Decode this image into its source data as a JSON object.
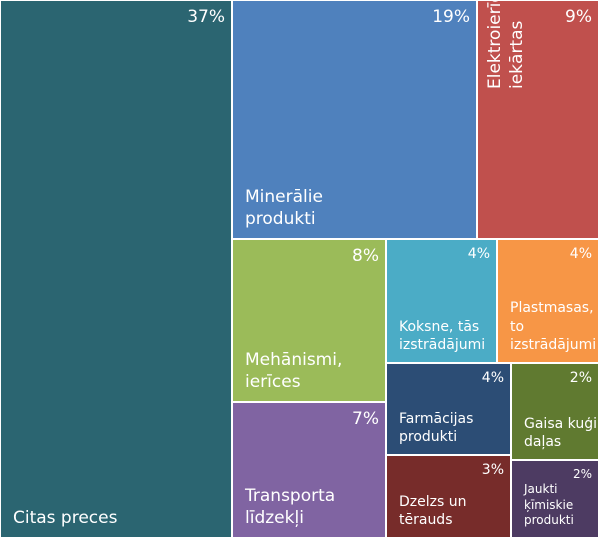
{
  "chart_data": {
    "type": "treemap",
    "categories": [
      "Citas preces",
      "Minerālie produkti",
      "Elektroierīces, iekārtas",
      "Mehānismi, ierīces",
      "Koksne, tās izstrādājumi",
      "Plastmasas, to izstrādājumi",
      "Transporta līdzekļi",
      "Farmācijas produkti",
      "Gaisa kuģi, to daļas",
      "Dzelzs un tērauds",
      "Jaukti ķīmiskie produkti"
    ],
    "values": [
      37,
      19,
      9,
      8,
      4,
      4,
      7,
      4,
      2,
      3,
      2
    ],
    "value_labels": [
      "37%",
      "19%",
      "9%",
      "8%",
      "4%",
      "4%",
      "7%",
      "4%",
      "2%",
      "3%",
      "2%"
    ],
    "colors": [
      "#2b6571",
      "#4f81bd",
      "#c0504d",
      "#9bbb59",
      "#4bacc6",
      "#f79646",
      "#8064a2",
      "#2c4d75",
      "#607a30",
      "#772c2a",
      "#4d3b62"
    ]
  }
}
